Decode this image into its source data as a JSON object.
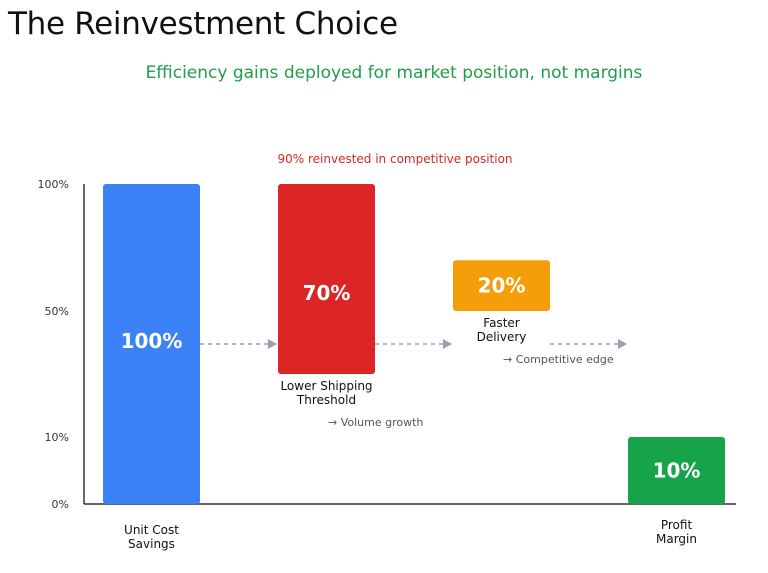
{
  "title": "The Reinvestment Choice",
  "subtitle": "Efficiency gains deployed for market position, not margins",
  "chart_data": {
    "type": "bar",
    "title": "The Reinvestment Choice",
    "subtitle": "Efficiency gains deployed for market position, not margins",
    "annotation": "90% reinvested in competitive position",
    "y_ticks": [
      "100%",
      "50%",
      "10%",
      "0%"
    ],
    "ylim": [
      0,
      100
    ],
    "bars": [
      {
        "label_lines": [
          "Unit Cost",
          "Savings"
        ],
        "value_label": "100%",
        "bottom": 0,
        "top": 100,
        "color": "#3b82f6",
        "note": ""
      },
      {
        "label_lines": [
          "Lower Shipping",
          "Threshold"
        ],
        "value_label": "70%",
        "bottom": 30,
        "top": 100,
        "color": "#dc2626",
        "note": "→ Volume growth"
      },
      {
        "label_lines": [
          "Faster",
          "Delivery"
        ],
        "value_label": "20%",
        "bottom": 50,
        "top": 70,
        "color": "#f59e0b",
        "note": "→ Competitive edge"
      },
      {
        "label_lines": [
          "Profit",
          "Margin"
        ],
        "value_label": "10%",
        "bottom": 0,
        "top": 10,
        "color": "#16a34a",
        "note": ""
      }
    ]
  }
}
